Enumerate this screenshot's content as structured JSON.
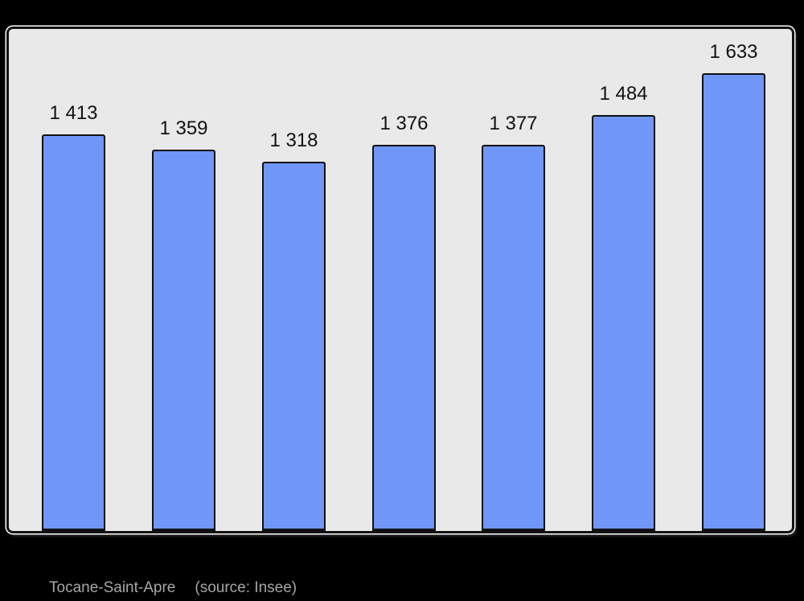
{
  "chart_data": {
    "type": "bar",
    "values": [
      1413,
      1359,
      1318,
      1376,
      1377,
      1484,
      1633
    ],
    "value_labels": [
      "1 413",
      "1 359",
      "1 318",
      "1 376",
      "1 377",
      "1 484",
      "1 633"
    ],
    "title": "",
    "xlabel": "",
    "ylabel": "",
    "ylim": [
      0,
      1790
    ],
    "grid": false,
    "legend": false,
    "bar_color": "#7097F8",
    "bar_border_color": "#111111"
  },
  "caption": {
    "title": "Tocane-Saint-Apre",
    "source": "(source: Insee)"
  },
  "colors": {
    "page_bg": "#000000",
    "panel_bg": "#E9E9E9",
    "panel_border": "#111111",
    "label_text": "#111111",
    "caption_text": "#A6A6A6"
  }
}
